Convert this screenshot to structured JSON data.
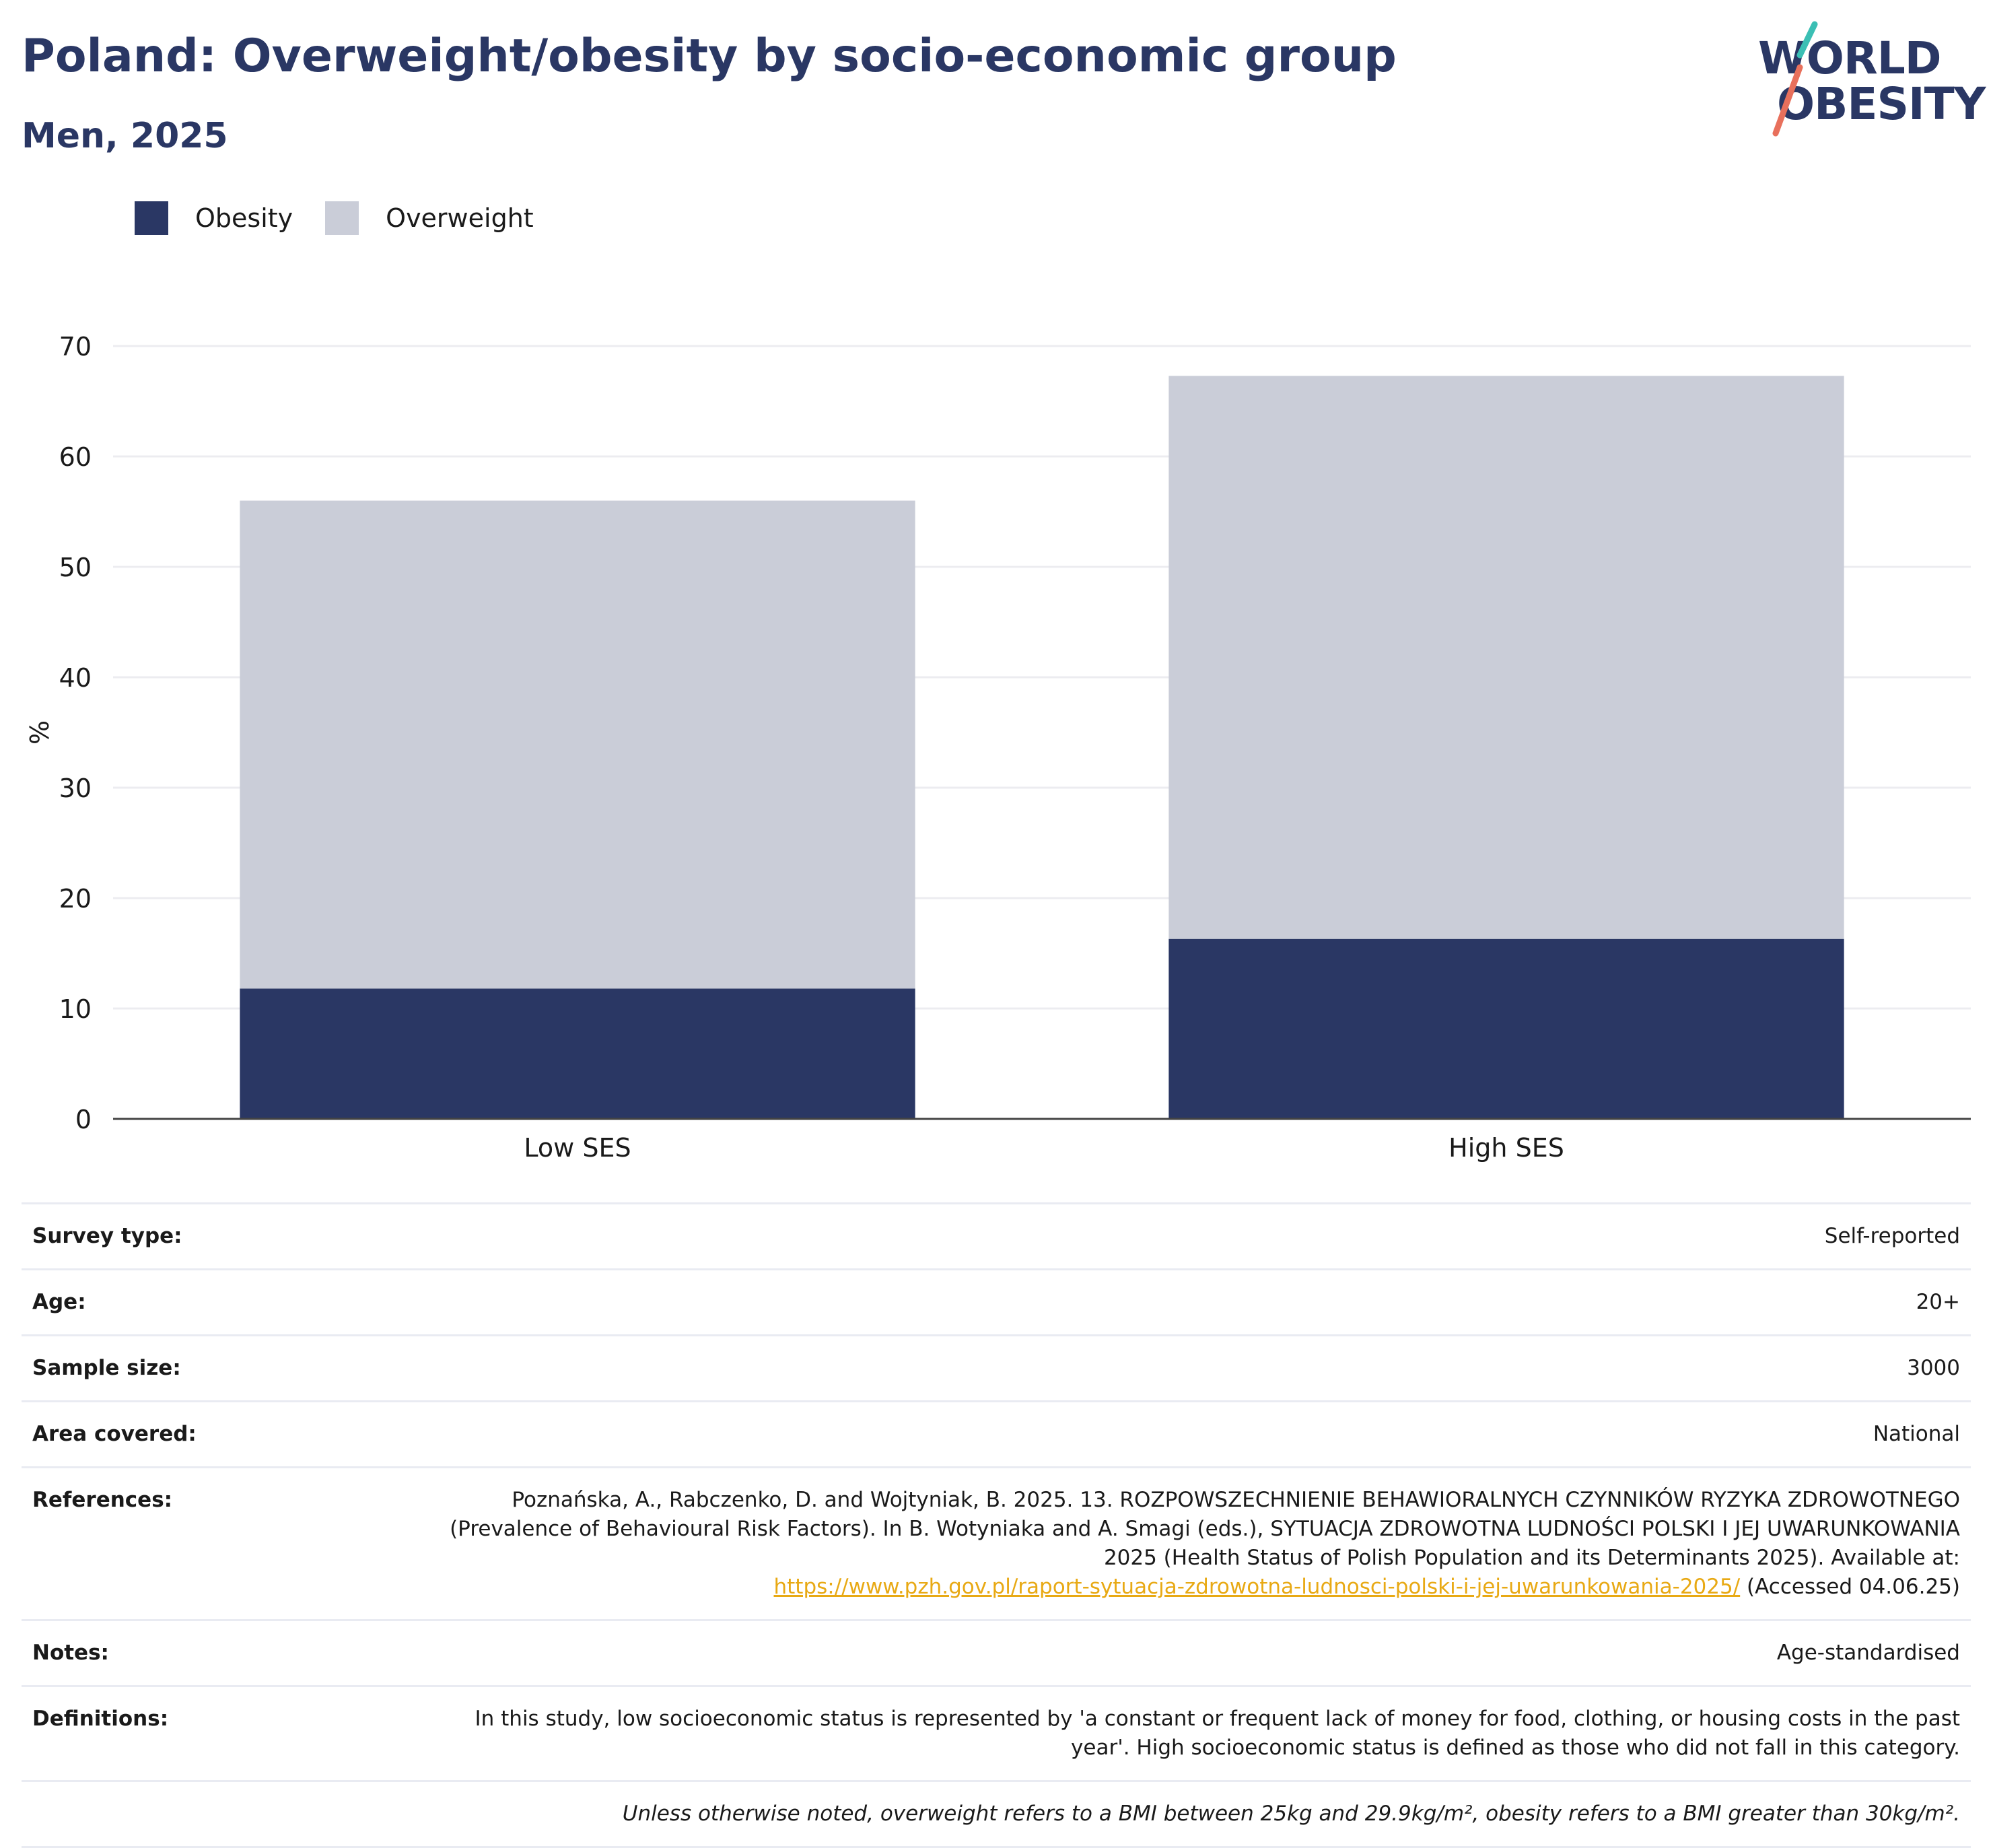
{
  "title": "Poland: Overweight/obesity by socio-economic group",
  "subtitle": "Men, 2025",
  "logo": {
    "line1": "WORLD",
    "line2": "OBESITY",
    "icon": "world-obesity-logo"
  },
  "colors": {
    "obesity": "#2a3764",
    "overweight": "#cacdd8",
    "title": "#2a3764",
    "link": "#e8a914",
    "gridline": "#ececf0"
  },
  "chart_data": {
    "type": "bar",
    "stacked": true,
    "categories": [
      "Low SES",
      "High SES"
    ],
    "series": [
      {
        "name": "Obesity",
        "values": [
          11.8,
          16.3
        ]
      },
      {
        "name": "Overweight",
        "values": [
          44.2,
          51.0
        ]
      }
    ],
    "totals": [
      56.0,
      67.3
    ],
    "ylabel": "%",
    "xlabel": "",
    "ylim": [
      0,
      70
    ],
    "yticks": [
      0,
      10,
      20,
      30,
      40,
      50,
      60,
      70
    ],
    "grid": true,
    "legend_position": "top-left"
  },
  "info": {
    "survey_type": {
      "label": "Survey type:",
      "value": "Self-reported"
    },
    "age": {
      "label": "Age:",
      "value": "20+"
    },
    "sample_size": {
      "label": "Sample size:",
      "value": "3000"
    },
    "area": {
      "label": "Area covered:",
      "value": "National"
    },
    "references": {
      "label": "References:",
      "text": "Poznańska, A., Rabczenko, D. and Wojtyniak, B. 2025. 13. ROZPOWSZECHNIENIE BEHAWIORALNYCH CZYNNIKÓW RYZYKA ZDROWOTNEGO (Prevalence of Behavioural Risk Factors). In B. Wotyniaka and A. Smagi (eds.), SYTUACJA ZDROWOTNA LUDNOŚCI POLSKI I JEJ UWARUNKOWANIA 2025 (Health Status of Polish Population and its Determinants 2025). Available at:",
      "url": "https://www.pzh.gov.pl/raport-sytuacja-zdrowotna-ludnosci-polski-i-jej-uwarunkowania-2025/",
      "accessed": "(Accessed 04.06.25)"
    },
    "notes": {
      "label": "Notes:",
      "value": "Age-standardised"
    },
    "definitions": {
      "label": "Definitions:",
      "value": "In this study, low socioeconomic status is represented by 'a constant or frequent lack of money for food, clothing, or housing costs in the past year'. High socioeconomic status is defined as those who did not fall in this category."
    },
    "footnote": "Unless otherwise noted, overweight refers to a BMI between 25kg and 29.9kg/m², obesity refers to a BMI greater than 30kg/m²."
  }
}
